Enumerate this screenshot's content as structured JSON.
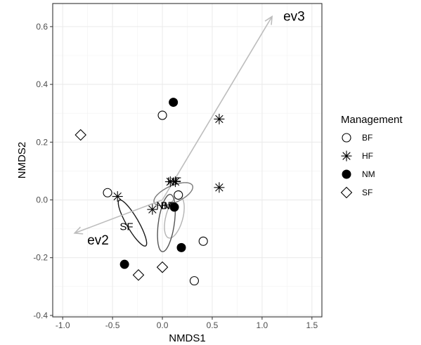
{
  "chart_data": {
    "type": "scatter",
    "xlabel": "NMDS1",
    "ylabel": "NMDS2",
    "xlim": [
      -1.1,
      1.6
    ],
    "ylim": [
      -0.405,
      0.68
    ],
    "x_ticks": [
      "-1.0",
      "-0.5",
      "0.0",
      "0.5",
      "1.0",
      "1.5"
    ],
    "x_tick_values": [
      -1.0,
      -0.5,
      0.0,
      0.5,
      1.0,
      1.5
    ],
    "y_ticks": [
      "-0.4",
      "-0.2",
      "0.0",
      "0.2",
      "0.4",
      "0.6"
    ],
    "y_tick_values": [
      -0.4,
      -0.2,
      0.0,
      0.2,
      0.4,
      0.6
    ],
    "grid": true,
    "legend": {
      "title": "Management",
      "placement": "right",
      "entries": [
        {
          "label": "BF",
          "shape": "open-circle"
        },
        {
          "label": "HF",
          "shape": "asterisk"
        },
        {
          "label": "NM",
          "shape": "filled-circle"
        },
        {
          "label": "SF",
          "shape": "open-diamond"
        }
      ]
    },
    "series": [
      {
        "name": "BF",
        "shape": "open-circle",
        "points": [
          [
            -0.55,
            0.025
          ],
          [
            0.0,
            0.293
          ],
          [
            0.16,
            0.017
          ],
          [
            0.41,
            -0.143
          ],
          [
            0.32,
            -0.28
          ]
        ]
      },
      {
        "name": "HF",
        "shape": "asterisk",
        "points": [
          [
            -0.45,
            0.012
          ],
          [
            -0.1,
            -0.033
          ],
          [
            0.08,
            0.063
          ],
          [
            0.13,
            0.063
          ],
          [
            0.57,
            0.28
          ],
          [
            0.57,
            0.043
          ]
        ]
      },
      {
        "name": "NM",
        "shape": "filled-circle",
        "points": [
          [
            0.11,
            0.338
          ],
          [
            0.12,
            -0.025
          ],
          [
            0.19,
            -0.165
          ],
          [
            -0.38,
            -0.223
          ]
        ]
      },
      {
        "name": "SF",
        "shape": "open-diamond",
        "points": [
          [
            -0.82,
            0.225
          ],
          [
            -0.24,
            -0.26
          ],
          [
            0.0,
            -0.233
          ]
        ]
      }
    ],
    "ellipses": [
      {
        "group": "BF",
        "cx": 0.12,
        "cy": -0.06,
        "rx": 0.43,
        "ry": 0.17,
        "angle_deg": 75,
        "color": "#b3b3b3"
      },
      {
        "group": "HF",
        "cx": 0.11,
        "cy": 0.02,
        "rx": 0.42,
        "ry": 0.17,
        "angle_deg": 24,
        "color": "#7a7a7a"
      },
      {
        "group": "NM",
        "cx": 0.04,
        "cy": -0.08,
        "rx": 0.58,
        "ry": 0.16,
        "angle_deg": 82,
        "color": "#555555"
      },
      {
        "group": "SF",
        "cx": -0.3,
        "cy": -0.08,
        "rx": 0.53,
        "ry": 0.12,
        "angle_deg": -60,
        "color": "#1a1a1a"
      }
    ],
    "centroid_labels": [
      {
        "label": "HF",
        "x": 0.12,
        "y": 0.066
      },
      {
        "label": "NM",
        "x": 0.02,
        "y": -0.02
      },
      {
        "label": "BF",
        "x": 0.05,
        "y": -0.02
      },
      {
        "label": "SF",
        "x": -0.36,
        "y": -0.092
      }
    ],
    "vectors": [
      {
        "label": "ev3",
        "x": 1.1,
        "y": 0.635,
        "color": "#bdbdbd"
      },
      {
        "label": "ev2",
        "x": -0.88,
        "y": -0.115,
        "color": "#bdbdbd"
      }
    ]
  }
}
